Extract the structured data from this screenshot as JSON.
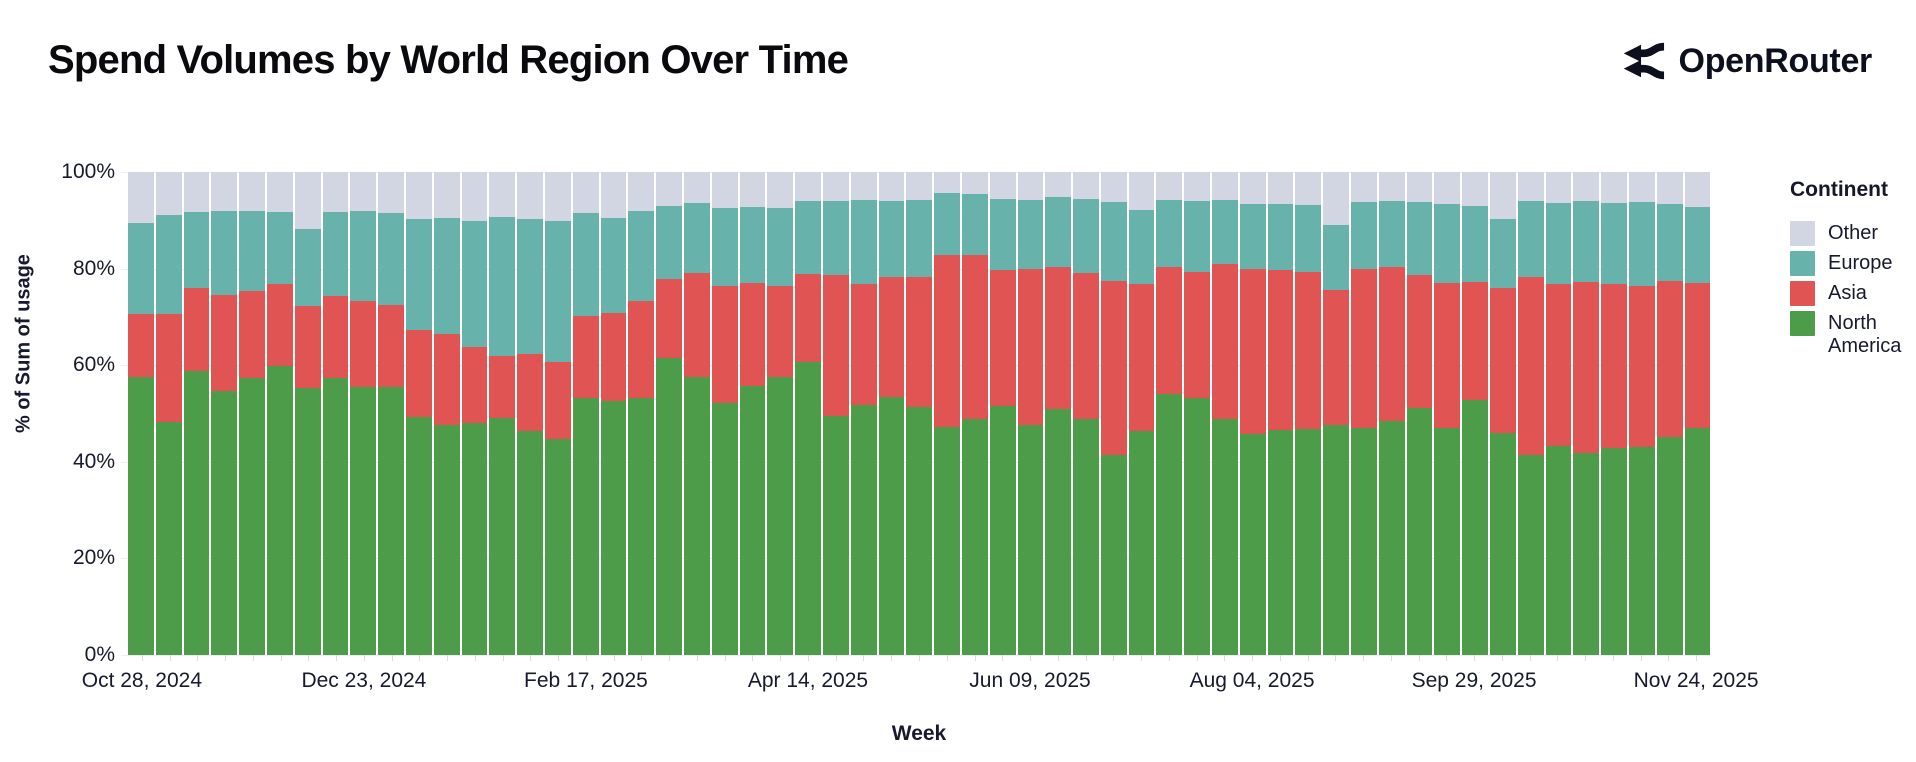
{
  "header": {
    "title": "Spend Volumes by World Region Over Time",
    "brand": "OpenRouter"
  },
  "chart_data": {
    "type": "bar",
    "stacked": true,
    "normalized_percent": true,
    "title": "Spend Volumes by World Region Over Time",
    "xlabel": "Week",
    "ylabel": "% of Sum of usage",
    "ylim": [
      0,
      100
    ],
    "grid": true,
    "y_ticks": [
      "0%",
      "20%",
      "40%",
      "60%",
      "80%",
      "100%"
    ],
    "x_tick_indices": [
      0,
      8,
      16,
      24,
      32,
      40,
      48,
      56
    ],
    "x_tick_labels": [
      "Oct 28, 2024",
      "Dec 23, 2024",
      "Feb 17, 2025",
      "Apr 14, 2025",
      "Jun 09, 2025",
      "Aug 04, 2025",
      "Sep 29, 2025",
      "Nov 24, 2025"
    ],
    "categories": [
      "Oct 28, 2024",
      "Nov 04, 2024",
      "Nov 11, 2024",
      "Nov 18, 2024",
      "Nov 25, 2024",
      "Dec 02, 2024",
      "Dec 09, 2024",
      "Dec 16, 2024",
      "Dec 23, 2024",
      "Dec 30, 2024",
      "Jan 06, 2025",
      "Jan 13, 2025",
      "Jan 20, 2025",
      "Jan 27, 2025",
      "Feb 03, 2025",
      "Feb 10, 2025",
      "Feb 17, 2025",
      "Feb 24, 2025",
      "Mar 03, 2025",
      "Mar 10, 2025",
      "Mar 17, 2025",
      "Mar 24, 2025",
      "Mar 31, 2025",
      "Apr 07, 2025",
      "Apr 14, 2025",
      "Apr 21, 2025",
      "Apr 28, 2025",
      "May 05, 2025",
      "May 12, 2025",
      "May 19, 2025",
      "May 26, 2025",
      "Jun 02, 2025",
      "Jun 09, 2025",
      "Jun 16, 2025",
      "Jun 23, 2025",
      "Jun 30, 2025",
      "Jul 07, 2025",
      "Jul 14, 2025",
      "Jul 21, 2025",
      "Jul 28, 2025",
      "Aug 04, 2025",
      "Aug 11, 2025",
      "Aug 18, 2025",
      "Aug 25, 2025",
      "Sep 01, 2025",
      "Sep 08, 2025",
      "Sep 15, 2025",
      "Sep 22, 2025",
      "Sep 29, 2025",
      "Oct 06, 2025",
      "Oct 13, 2025",
      "Oct 20, 2025",
      "Oct 27, 2025",
      "Nov 03, 2025",
      "Nov 10, 2025",
      "Nov 17, 2025",
      "Nov 24, 2025"
    ],
    "series": [
      {
        "name": "North America",
        "color": "#4D9C49",
        "values": [
          57.5,
          48.2,
          58.7,
          54.7,
          57.3,
          59.8,
          55.2,
          57.3,
          55.5,
          55.4,
          49.2,
          47.7,
          48.1,
          49.0,
          46.4,
          44.7,
          53.3,
          52.5,
          53.3,
          61.5,
          57.6,
          52.1,
          55.7,
          57.5,
          60.6,
          49.5,
          51.8,
          53.4,
          51.4,
          47.3,
          48.8,
          51.6,
          47.7,
          50.9,
          48.8,
          41.4,
          46.4,
          54.0,
          53.3,
          48.8,
          45.8,
          46.6,
          46.7,
          47.6,
          46.9,
          48.5,
          51.1,
          46.9,
          52.7,
          45.9,
          41.4,
          43.3,
          41.8,
          42.9,
          43.0,
          45.1,
          46.9
        ]
      },
      {
        "name": "Asia",
        "color": "#E05553",
        "values": [
          13.1,
          22.3,
          17.2,
          19.8,
          18.1,
          17.1,
          17.1,
          17.0,
          17.7,
          17.1,
          18.1,
          18.8,
          15.6,
          12.8,
          15.9,
          15.9,
          16.8,
          18.4,
          19.9,
          16.3,
          21.4,
          24.3,
          21.4,
          18.9,
          18.3,
          29.2,
          25.0,
          24.8,
          26.9,
          35.5,
          34.0,
          28.1,
          32.2,
          29.5,
          30.2,
          36.1,
          30.4,
          26.4,
          25.9,
          32.1,
          34.1,
          33.1,
          32.5,
          27.9,
          33.0,
          31.8,
          27.6,
          30.2,
          24.6,
          30.0,
          36.8,
          33.5,
          35.5,
          33.9,
          33.3,
          32.4,
          30.2
        ]
      },
      {
        "name": "Europe",
        "color": "#67B3AB",
        "values": [
          18.9,
          20.6,
          15.9,
          17.5,
          16.6,
          14.9,
          15.9,
          17.5,
          18.8,
          19.0,
          22.9,
          24.0,
          26.1,
          28.9,
          28.0,
          29.2,
          21.4,
          19.6,
          18.8,
          15.2,
          14.6,
          16.1,
          15.7,
          16.2,
          15.0,
          15.2,
          17.3,
          15.7,
          15.8,
          12.8,
          12.6,
          14.7,
          14.4,
          14.5,
          15.4,
          16.2,
          15.4,
          13.9,
          14.7,
          13.2,
          13.5,
          13.7,
          14.0,
          13.5,
          13.8,
          13.6,
          15.0,
          16.3,
          15.6,
          14.3,
          15.7,
          16.7,
          16.6,
          16.7,
          17.4,
          15.9,
          15.6
        ]
      },
      {
        "name": "Other",
        "color": "#D2D6E2",
        "values": [
          10.5,
          8.9,
          8.2,
          8.0,
          8.0,
          8.2,
          11.8,
          8.2,
          8.0,
          8.5,
          9.8,
          9.5,
          10.2,
          9.3,
          9.7,
          10.2,
          8.5,
          9.5,
          8.0,
          7.0,
          6.4,
          7.5,
          7.2,
          7.4,
          6.1,
          6.1,
          5.9,
          6.1,
          5.9,
          4.4,
          4.6,
          5.6,
          5.7,
          5.1,
          5.6,
          6.3,
          7.8,
          5.7,
          6.1,
          5.9,
          6.6,
          6.6,
          6.8,
          11.0,
          6.3,
          6.1,
          6.3,
          6.6,
          7.1,
          9.8,
          6.1,
          6.5,
          6.1,
          6.5,
          6.3,
          6.6,
          7.3
        ]
      }
    ],
    "legend": {
      "title": "Continent",
      "position": "right",
      "entries": [
        {
          "label": "Other",
          "color": "#D2D6E2"
        },
        {
          "label": "Europe",
          "color": "#67B3AB"
        },
        {
          "label": "Asia",
          "color": "#E05553"
        },
        {
          "label": "North America",
          "color": "#4D9C49"
        }
      ]
    }
  }
}
